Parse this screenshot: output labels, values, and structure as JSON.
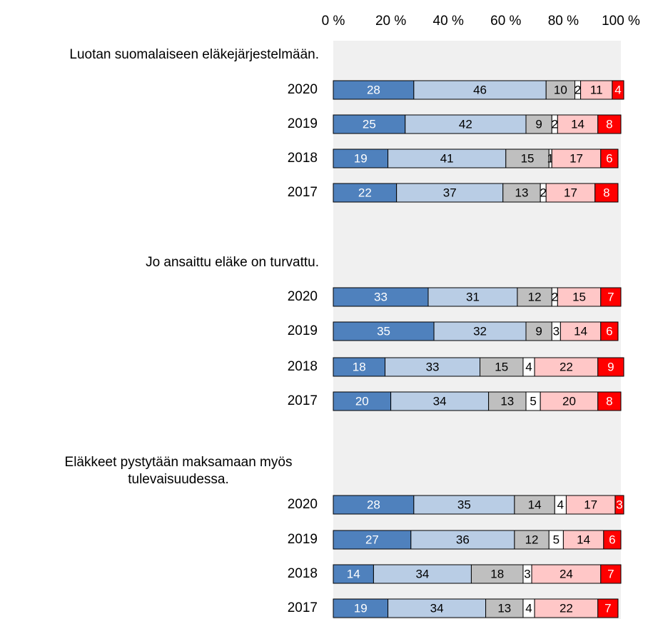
{
  "chart_data": [
    {
      "type": "bar",
      "stacked": true,
      "orientation": "horizontal",
      "title": [
        "Luotan suomalaiseen eläkejärjestelmään."
      ],
      "categories": [
        "2020",
        "2019",
        "2018",
        "2017"
      ],
      "xlim": [
        0,
        100
      ],
      "xticks": [
        {
          "value": 0,
          "label": "0 %"
        },
        {
          "value": 20,
          "label": "20 %"
        },
        {
          "value": 40,
          "label": "40 %"
        },
        {
          "value": 60,
          "label": "60 %"
        },
        {
          "value": 80,
          "label": "80 %"
        },
        {
          "value": 100,
          "label": "100 %"
        }
      ],
      "series": [
        {
          "color": "#4f81bd",
          "label_color": "#ffffff",
          "values": [
            28,
            25,
            19,
            22
          ]
        },
        {
          "color": "#b9cde5",
          "label_color": "#000000",
          "values": [
            46,
            42,
            41,
            37
          ]
        },
        {
          "color": "#bfbfbf",
          "label_color": "#000000",
          "values": [
            10,
            9,
            15,
            13
          ]
        },
        {
          "color": "#ffffff",
          "label_color": "#000000",
          "values": [
            2,
            2,
            1,
            2
          ]
        },
        {
          "color": "#ffc7c7",
          "label_color": "#000000",
          "values": [
            11,
            14,
            17,
            17
          ]
        },
        {
          "color": "#ff0000",
          "label_color": "#ffffff",
          "values": [
            4,
            8,
            6,
            8
          ]
        }
      ]
    },
    {
      "type": "bar",
      "stacked": true,
      "orientation": "horizontal",
      "title": [
        "Jo ansaittu eläke on turvattu."
      ],
      "categories": [
        "2020",
        "2019",
        "2018",
        "2017"
      ],
      "xlim": [
        0,
        100
      ],
      "series": [
        {
          "color": "#4f81bd",
          "label_color": "#ffffff",
          "values": [
            33,
            35,
            18,
            20
          ]
        },
        {
          "color": "#b9cde5",
          "label_color": "#000000",
          "values": [
            31,
            32,
            33,
            34
          ]
        },
        {
          "color": "#bfbfbf",
          "label_color": "#000000",
          "values": [
            12,
            9,
            15,
            13
          ]
        },
        {
          "color": "#ffffff",
          "label_color": "#000000",
          "values": [
            2,
            3,
            4,
            5
          ]
        },
        {
          "color": "#ffc7c7",
          "label_color": "#000000",
          "values": [
            15,
            14,
            22,
            20
          ]
        },
        {
          "color": "#ff0000",
          "label_color": "#ffffff",
          "values": [
            7,
            6,
            9,
            8
          ]
        }
      ]
    },
    {
      "type": "bar",
      "stacked": true,
      "orientation": "horizontal",
      "title": [
        "Eläkkeet pystytään maksamaan myös",
        "tulevaisuudessa."
      ],
      "categories": [
        "2020",
        "2019",
        "2018",
        "2017"
      ],
      "xlim": [
        0,
        100
      ],
      "series": [
        {
          "color": "#4f81bd",
          "label_color": "#ffffff",
          "values": [
            28,
            27,
            14,
            19
          ]
        },
        {
          "color": "#b9cde5",
          "label_color": "#000000",
          "values": [
            35,
            36,
            34,
            34
          ]
        },
        {
          "color": "#bfbfbf",
          "label_color": "#000000",
          "values": [
            14,
            12,
            18,
            13
          ]
        },
        {
          "color": "#ffffff",
          "label_color": "#000000",
          "values": [
            4,
            5,
            3,
            4
          ]
        },
        {
          "color": "#ffc7c7",
          "label_color": "#000000",
          "values": [
            17,
            14,
            24,
            22
          ]
        },
        {
          "color": "#ff0000",
          "label_color": "#ffffff",
          "values": [
            3,
            6,
            7,
            7
          ]
        }
      ]
    }
  ]
}
